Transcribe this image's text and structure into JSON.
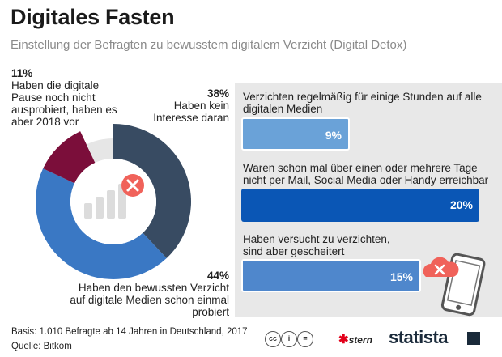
{
  "title": "Digitales Fasten",
  "subtitle": "Einstellung der Befragten zu bewusstem digitalem Verzicht (Digital Detox)",
  "chart_data": [
    {
      "type": "pie",
      "slices": [
        {
          "name": "Haben kein Interesse daran",
          "value": 38,
          "pct_label": "38%",
          "color": "#384b62"
        },
        {
          "name": "Haben den bewussten Verzicht auf digitale Medien schon einmal probiert",
          "value": 44,
          "pct_label": "44%",
          "color": "#3a78c4"
        },
        {
          "name": "Haben die digitale Pause noch nicht ausprobiert, haben es aber 2018 vor",
          "value": 11,
          "pct_label": "11%",
          "color": "#7b0e3a"
        }
      ],
      "remainder": {
        "value": 7,
        "color": "#e6e6e6"
      }
    },
    {
      "type": "bar",
      "categories": [
        "Verzichten regelmäßig für einige Stunden auf alle digitalen Medien",
        "Waren schon mal über einen oder mehrere Tage nicht per Mail, Social Media oder Handy erreichbar",
        "Haben versucht zu verzichten, sind aber gescheitert"
      ],
      "values": [
        9,
        20,
        15
      ],
      "value_labels": [
        "9%",
        "20%",
        "15%"
      ],
      "xlim": [
        0,
        20
      ],
      "colors": [
        "#6aa2d8",
        "#0a56b5",
        "#4f87cc"
      ]
    }
  ],
  "labels": {
    "slice11": {
      "pct": "11%",
      "text": "Haben die digitale Pause noch nicht ausprobiert, haben es aber 2018 vor"
    },
    "slice38": {
      "pct": "38%",
      "text": "Haben kein Interesse daran"
    },
    "slice44": {
      "pct": "44%",
      "text": "Haben den bewussten Verzicht auf digitale Medien schon einmal probiert"
    }
  },
  "bars": [
    {
      "question": "Verzichten regelmäßig für einige Stunden auf alle digitalen Medien",
      "value_label": "9%"
    },
    {
      "question": "Waren schon mal über einen oder mehrere Tage nicht per Mail, Social Media oder Handy erreichbar",
      "value_label": "20%"
    },
    {
      "question": "Haben versucht zu verzichten, sind aber gescheitert",
      "value_label": "15%"
    }
  ],
  "footer": {
    "basis": "Basis: 1.010 Befragte ab 14 Jahren in Deutschland, 2017",
    "quelle": "Quelle: Bitkom",
    "stern": "stern",
    "statista": "statista"
  },
  "icons": [
    "x-circle-icon",
    "signal-bars-icon",
    "smartphone-icon",
    "cloud-x-icon",
    "creative-commons-icon"
  ]
}
